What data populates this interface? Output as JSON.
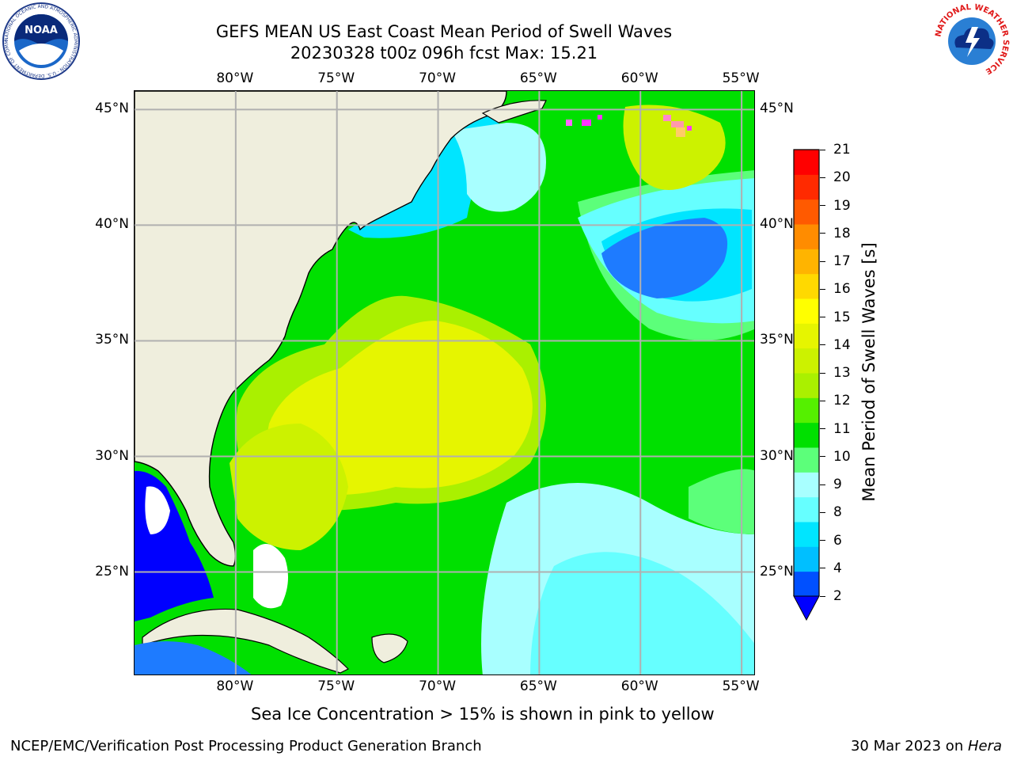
{
  "title": {
    "line1": "GEFS MEAN US East Coast Mean Period of Swell Waves",
    "line2": "20230328 t00z 096h fcst   Max: 15.21"
  },
  "map": {
    "lon_labels": [
      "80°W",
      "75°W",
      "70°W",
      "65°W",
      "60°W",
      "55°W"
    ],
    "lat_labels": [
      "45°N",
      "40°N",
      "35°N",
      "30°N",
      "25°N"
    ],
    "extent": {
      "lon_min": -85,
      "lon_max": -54.3,
      "lat_min": 20.5,
      "lat_max": 45.8
    },
    "colors": {
      "land": "#efeedd",
      "coastline": "#000000",
      "grid": "#b0b0b0"
    }
  },
  "colorbar": {
    "label": "Mean Period of Swell Waves [s]",
    "ticks": [
      "21",
      "20",
      "19",
      "18",
      "17",
      "16",
      "15",
      "14",
      "13",
      "12",
      "11",
      "10",
      "9",
      "8",
      "6",
      "4",
      "2"
    ],
    "colors_low_to_high": [
      "#0050ff",
      "#00bfff",
      "#00e5ff",
      "#66ffff",
      "#a8ffff",
      "#5cff7a",
      "#00e000",
      "#55f000",
      "#aaf000",
      "#ccf200",
      "#e6f500",
      "#ffff00",
      "#ffd900",
      "#ffb400",
      "#ff8c00",
      "#ff5a00",
      "#ff2a00",
      "#ff0000"
    ],
    "extend_color": "#0000ff"
  },
  "note": "Sea Ice Concentration > 15% is shown in pink to yellow",
  "footer": {
    "left": "NCEP/EMC/Verification Post Processing Product Generation Branch",
    "date": "30 Mar 2023 on ",
    "host": "Hera"
  },
  "logos": {
    "noaa": "NOAA",
    "noaa_ring": "NATIONAL OCEANIC AND ATMOSPHERIC ADMINISTRATION · U.S. DEPARTMENT OF COMMERCE",
    "nws_ring": "NATIONAL WEATHER SERVICE"
  }
}
